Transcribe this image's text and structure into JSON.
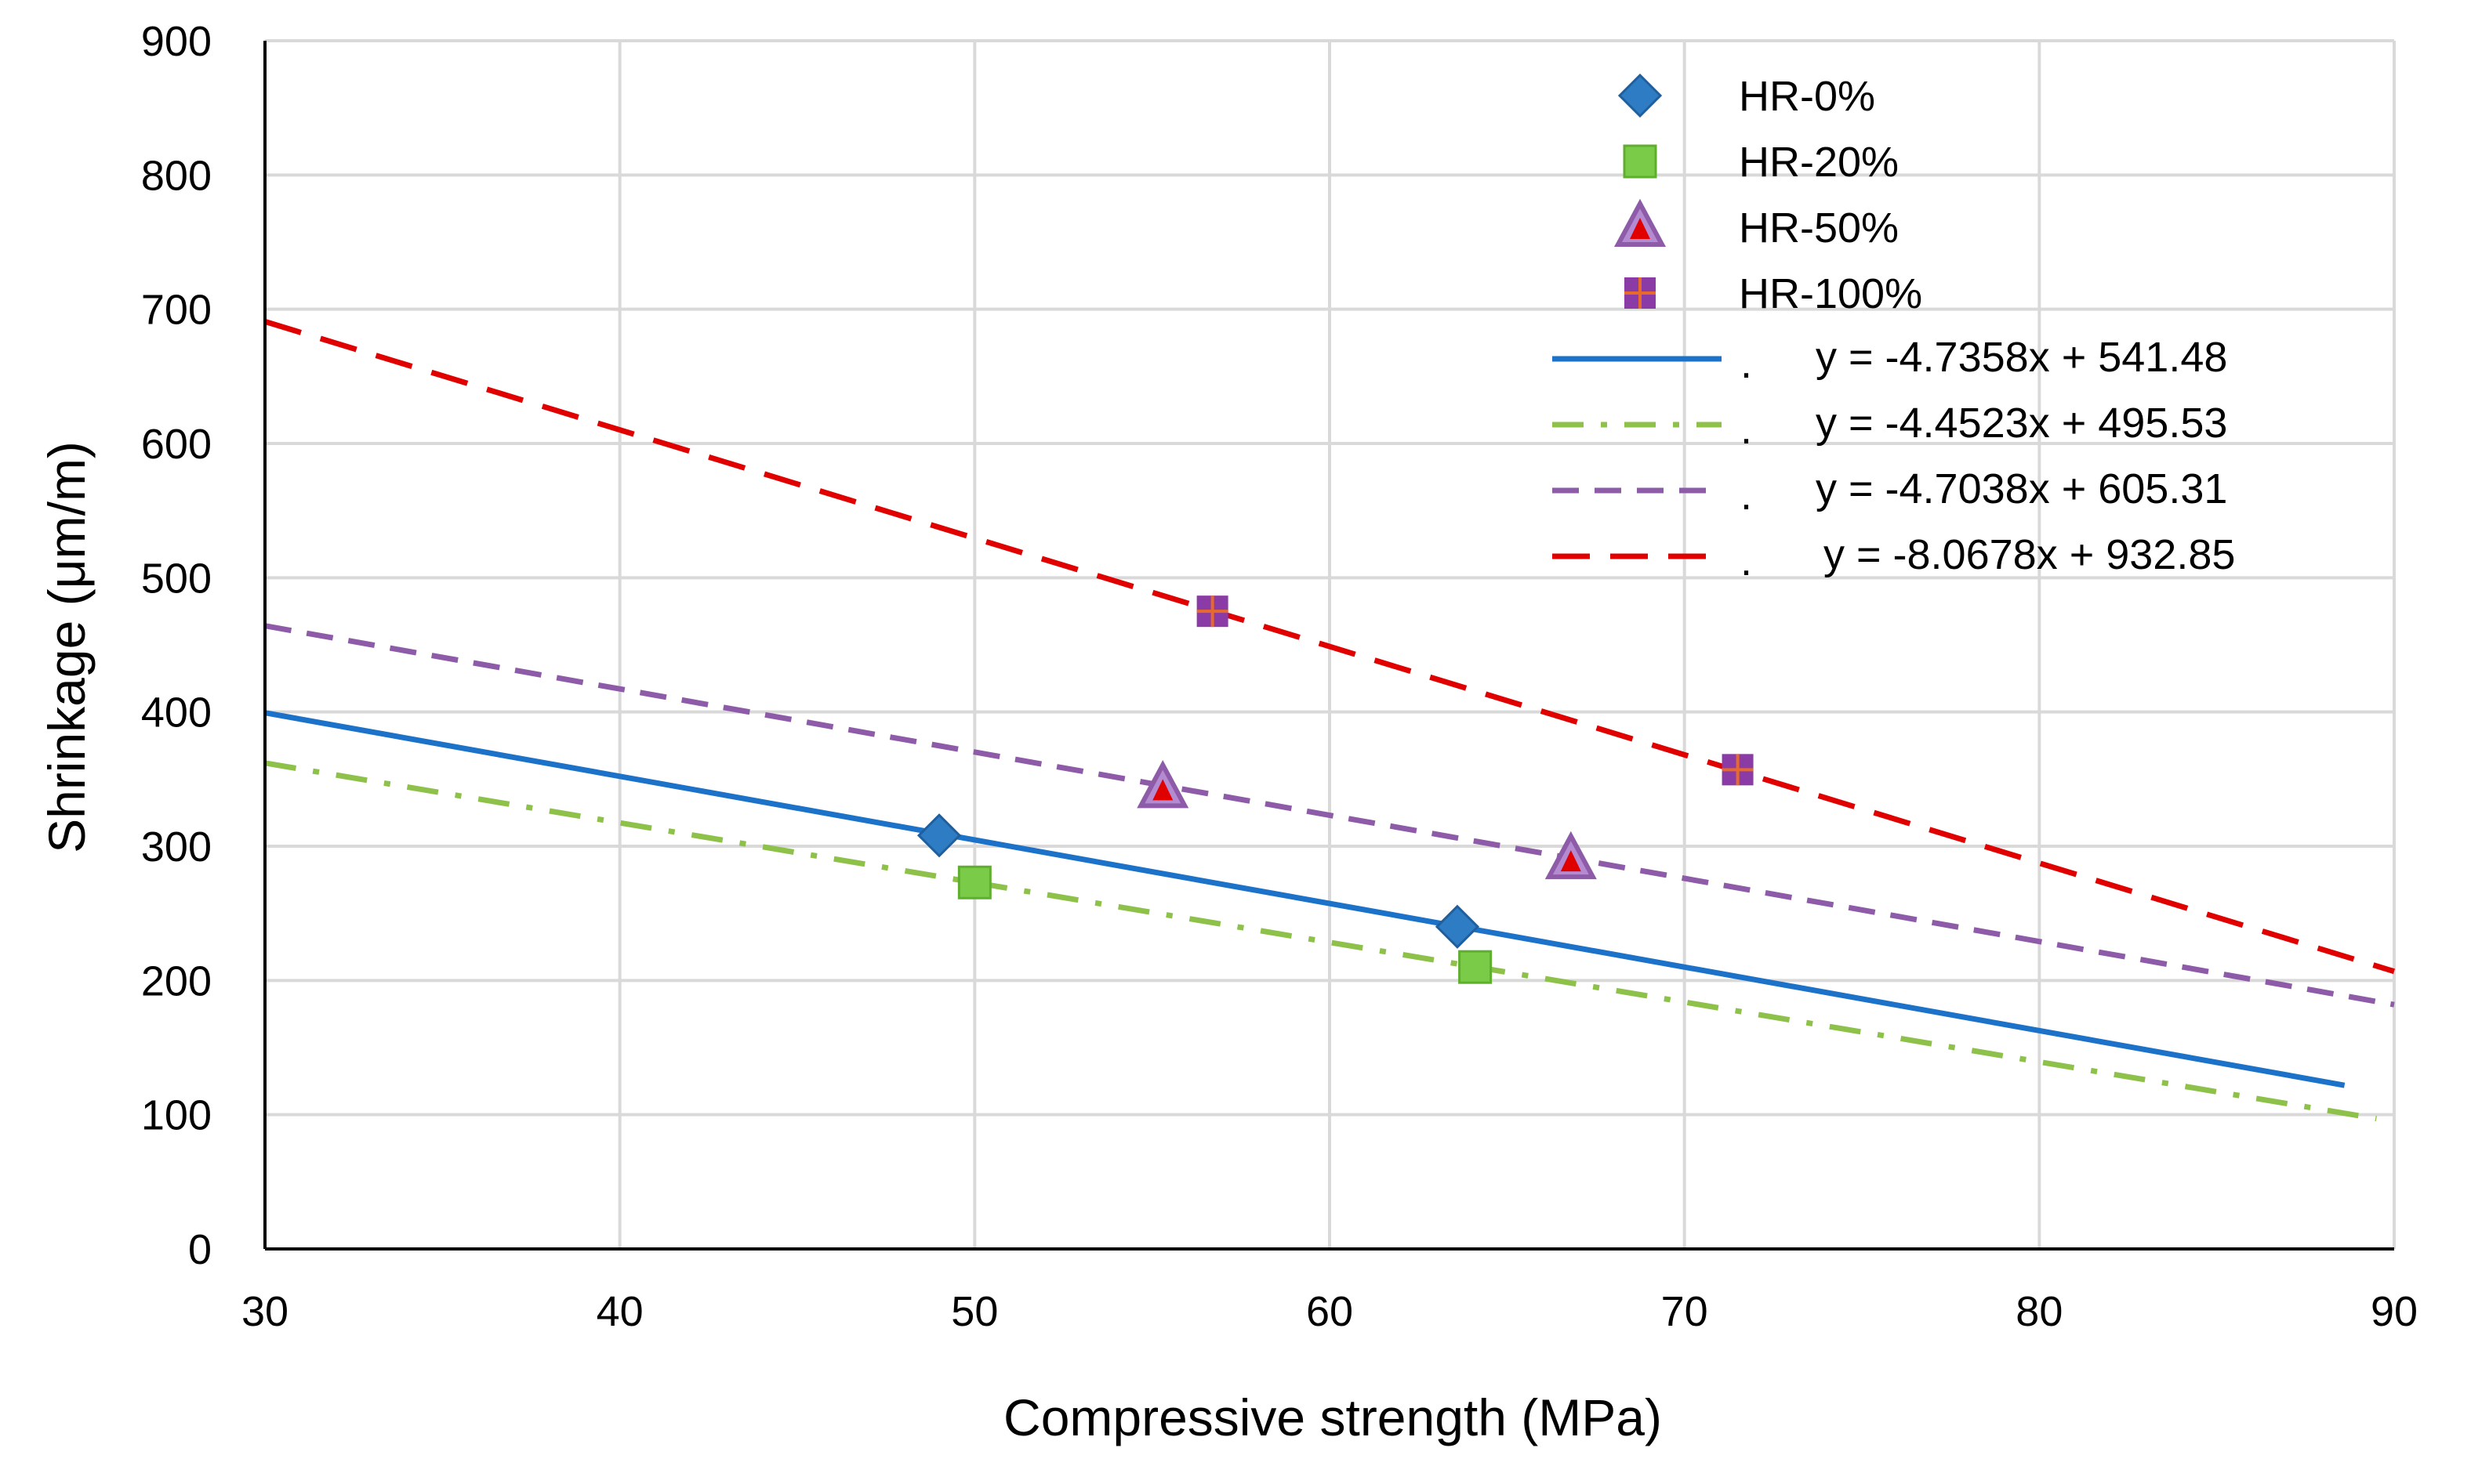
{
  "chart_data": {
    "type": "scatter",
    "title": "",
    "xlabel": "Compressive strength (MPa)",
    "ylabel": "Shrinkage (μm/m)",
    "xlim": [
      30,
      90
    ],
    "ylim": [
      0,
      900
    ],
    "xticks": [
      "30",
      "40",
      "50",
      "60",
      "70",
      "80",
      "90"
    ],
    "yticks": [
      "0",
      "100",
      "200",
      "300",
      "400",
      "500",
      "600",
      "700",
      "800",
      "900"
    ],
    "grid": true,
    "legend_position": "top-right",
    "series": [
      {
        "name": "HR-0%",
        "marker": "diamond",
        "color": "#2E7CC4",
        "stroke": "#1F5F9E",
        "points": [
          [
            49.0,
            308
          ],
          [
            63.6,
            240
          ]
        ]
      },
      {
        "name": "HR-20%",
        "marker": "square",
        "color": "#7ACC48",
        "stroke": "#5FAE2E",
        "points": [
          [
            50.0,
            273
          ],
          [
            64.1,
            210
          ]
        ]
      },
      {
        "name": "HR-50%",
        "marker": "triangle",
        "color": "#E00000",
        "stroke": "#8E5BA8",
        "points": [
          [
            55.3,
            343
          ],
          [
            66.8,
            290
          ]
        ]
      },
      {
        "name": "HR-100%",
        "marker": "plus-square",
        "color": "#8B3BA6",
        "stroke": "#E86A2A",
        "points": [
          [
            56.7,
            475
          ],
          [
            71.5,
            357
          ]
        ]
      }
    ],
    "trendlines": [
      {
        "equation": "y = -4.7358x + 541.48",
        "slope": -4.7358,
        "intercept": 541.48,
        "x_range": [
          30,
          88.6
        ],
        "color": "#1B72C8",
        "dash": "solid",
        "marker_label": "."
      },
      {
        "equation": "y = -4.4523x + 495.53",
        "slope": -4.4523,
        "intercept": 495.53,
        "x_range": [
          30,
          89.5
        ],
        "color": "#8DC14A",
        "dash": "dashdot",
        "marker_label": "."
      },
      {
        "equation": "y = -4.7038x + 605.31",
        "slope": -4.7038,
        "intercept": 605.31,
        "x_range": [
          30,
          90
        ],
        "color": "#8E5BA8",
        "dash": "dash",
        "marker_label": "."
      },
      {
        "equation": "y = -8.0678x + 932.85",
        "slope": -8.0678,
        "intercept": 932.85,
        "x_range": [
          30,
          90
        ],
        "color": "#E00000",
        "dash": "longdash",
        "marker_label": "."
      }
    ]
  }
}
